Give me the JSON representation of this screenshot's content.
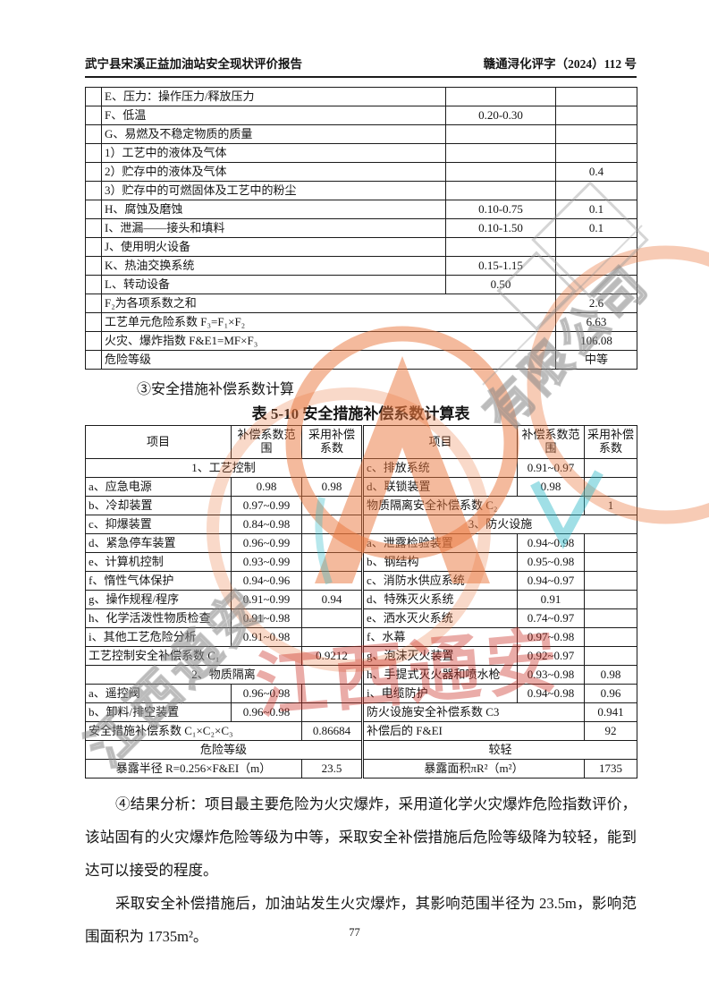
{
  "header": {
    "left": "武宁县宋溪正益加油站安全现状评价报告",
    "right": "赣通浔化评字（2024）112 号"
  },
  "table1": {
    "rows": [
      {
        "label": "E、压力：操作压力/释放压力",
        "range": "",
        "value": ""
      },
      {
        "label": "F、低温",
        "range": "0.20-0.30",
        "value": ""
      },
      {
        "label": "G、易燃及不稳定物质的质量",
        "range": "",
        "value": ""
      },
      {
        "label": "1）工艺中的液体及气体",
        "range": "",
        "value": ""
      },
      {
        "label": "2）贮存中的液体及气体",
        "range": "",
        "value": "0.4"
      },
      {
        "label": "3）贮存中的可燃固体及工艺中的粉尘",
        "range": "",
        "value": ""
      },
      {
        "label": "H、腐蚀及磨蚀",
        "range": "0.10-0.75",
        "value": "0.1"
      },
      {
        "label": "I、泄漏——接头和填料",
        "range": "0.10-1.50",
        "value": "0.1"
      },
      {
        "label": "J、使用明火设备",
        "range": "",
        "value": ""
      },
      {
        "label": "K、热油交换系统",
        "range": "0.15-1.15",
        "value": ""
      },
      {
        "label": "L、转动设备",
        "range": "0.50",
        "value": ""
      },
      {
        "label": "F₂为各项系数之和",
        "span": true,
        "value": "2.6"
      },
      {
        "label": "工艺单元危险系数 F₃=F₁×F₂",
        "span": true,
        "value": "6.63"
      },
      {
        "label": "火灾、爆炸指数 F&E1=MF×F₃",
        "span": true,
        "value": "106.08"
      },
      {
        "label": "危险等级",
        "span": true,
        "value": "中等"
      }
    ]
  },
  "section3_title": "③安全措施补偿系数计算",
  "table2": {
    "caption": "表 5-10 安全措施补偿系数计算表",
    "headers": {
      "item": "项目",
      "range": "补偿系数范围",
      "adopt": "采用补偿系数"
    },
    "rows": [
      {
        "left": {
          "t": "section",
          "label": "1、工艺控制"
        },
        "right": {
          "t": "item",
          "label": "c、排放系统",
          "range": "0.91~0.97",
          "adopt": ""
        }
      },
      {
        "left": {
          "t": "item",
          "label": "a、应急电源",
          "range": "0.98",
          "adopt": "0.98"
        },
        "right": {
          "t": "item",
          "label": "d、联锁装置",
          "range": "0.98",
          "adopt": ""
        }
      },
      {
        "left": {
          "t": "item",
          "label": "b、冷却装置",
          "range": "0.97~0.99",
          "adopt": ""
        },
        "right": {
          "t": "span2",
          "label": "物质隔离安全补偿系数 C₂",
          "adopt": "1"
        }
      },
      {
        "left": {
          "t": "item",
          "label": "c、抑爆装置",
          "range": "0.84~0.98",
          "adopt": ""
        },
        "right": {
          "t": "section",
          "label": "3、防火设施"
        }
      },
      {
        "left": {
          "t": "item",
          "label": "d、紧急停车装置",
          "range": "0.96~0.99",
          "adopt": ""
        },
        "right": {
          "t": "item",
          "label": "a、泄露检验装置",
          "range": "0.94~0.98",
          "adopt": ""
        }
      },
      {
        "left": {
          "t": "item",
          "label": "e、计算机控制",
          "range": "0.93~0.99",
          "adopt": ""
        },
        "right": {
          "t": "item",
          "label": "b、钢结构",
          "range": "0.95~0.98",
          "adopt": ""
        }
      },
      {
        "left": {
          "t": "item",
          "label": "f、惰性气体保护",
          "range": "0.94~0.96",
          "adopt": ""
        },
        "right": {
          "t": "item",
          "label": "c、消防水供应系统",
          "range": "0.94~0.97",
          "adopt": ""
        }
      },
      {
        "left": {
          "t": "item",
          "label": "g、操作规程/程序",
          "range": "0.91~0.99",
          "adopt": "0.94"
        },
        "right": {
          "t": "item",
          "label": "d、特殊灭火系统",
          "range": "0.91",
          "adopt": ""
        }
      },
      {
        "left": {
          "t": "item",
          "label": "h、化学活泼性物质检查",
          "range": "0.91~0.98",
          "adopt": ""
        },
        "right": {
          "t": "item",
          "label": "e、洒水灭火系统",
          "range": "0.74~0.97",
          "adopt": ""
        }
      },
      {
        "left": {
          "t": "item",
          "label": "i、其他工艺危险分析",
          "range": "0.91~0.98",
          "adopt": ""
        },
        "right": {
          "t": "item",
          "label": "f、水幕",
          "range": "0.97~0.98",
          "adopt": ""
        }
      },
      {
        "left": {
          "t": "span2",
          "label": "工艺控制安全补偿系数 C₁",
          "adopt": "0.9212"
        },
        "right": {
          "t": "item",
          "label": "g、泡沫灭火装置",
          "range": "0.92~0.97",
          "adopt": ""
        }
      },
      {
        "left": {
          "t": "section",
          "label": "2、物质隔离"
        },
        "right": {
          "t": "item",
          "label": "h、手提式灭火器和喷水枪",
          "range": "0.93~0.98",
          "adopt": "0.98"
        }
      },
      {
        "left": {
          "t": "item",
          "label": "a、遥控阀",
          "range": "0.96~0.98",
          "adopt": ""
        },
        "right": {
          "t": "item",
          "label": "i、电缆防护",
          "range": "0.94~0.98",
          "adopt": "0.96"
        }
      },
      {
        "left": {
          "t": "item",
          "label": "b、卸料/排空装置",
          "range": "0.96~0.98",
          "adopt": ""
        },
        "right": {
          "t": "span2",
          "label": "防火设施安全补偿系数 C3",
          "adopt": "0.941"
        }
      },
      {
        "left": {
          "t": "span2",
          "label": "安全措施补偿系数 C₁×C₂×C₃",
          "adopt": "0.86684"
        },
        "right": {
          "t": "span2",
          "label": "补偿后的 F&EI",
          "adopt": "92"
        }
      },
      {
        "left": {
          "t": "full",
          "label": "危险等级"
        },
        "right": {
          "t": "full",
          "label": "较轻"
        }
      },
      {
        "left": {
          "t": "span2c",
          "label": "暴露半径 R=0.256×F&EI（m）",
          "adopt": "23.5"
        },
        "right": {
          "t": "span2c",
          "label": "暴露面积πR²（m²）",
          "adopt": "1735"
        }
      }
    ]
  },
  "paragraphs": {
    "p1": "④结果分析：项目最主要危险为火灾爆炸，采用道化学火灾爆炸危险指数评价，该站固有的火灾爆炸危险等级为中等，采取安全补偿措施后危险等级降为较轻，能到达可以接受的程度。",
    "p2": "采取安全补偿措施后，加油站发生火灾爆炸，其影响范围半径为 23.5m，影响范围面积为 1735m²。"
  },
  "page_number": "77",
  "watermark": {
    "red_text": "江西通安",
    "gray_text_top": "有限公司",
    "gray_text_bottom": "江西通安",
    "logo": "ring-A-seal",
    "seal_color": "#ea7840",
    "red_color": "#ca3026",
    "cyan_color": "#2db9c8"
  }
}
